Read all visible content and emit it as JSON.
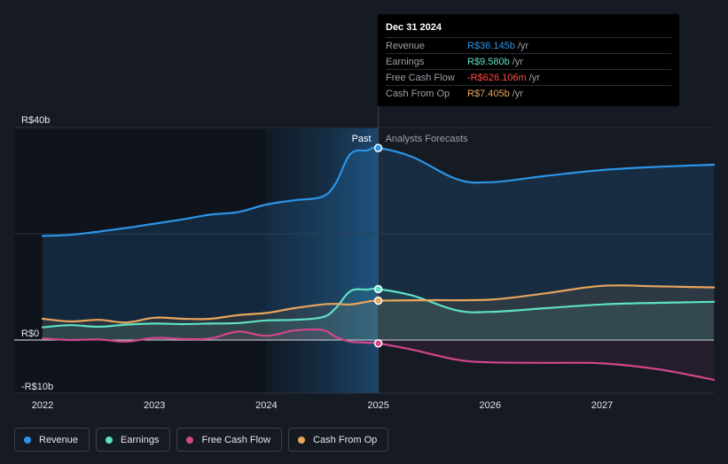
{
  "chart_data": {
    "type": "line",
    "title": "",
    "xlabel": "",
    "ylabel": "",
    "ylim": [
      -10,
      40
    ],
    "y_ticks": [
      {
        "value": 40,
        "label": "R$40b"
      },
      {
        "value": 0,
        "label": "R$0"
      },
      {
        "value": -10,
        "label": "-R$10b"
      }
    ],
    "x_ticks": [
      {
        "value": 2022,
        "label": "2022"
      },
      {
        "value": 2023,
        "label": "2023"
      },
      {
        "value": 2024,
        "label": "2024"
      },
      {
        "value": 2025,
        "label": "2025"
      },
      {
        "value": 2026,
        "label": "2026"
      },
      {
        "value": 2027,
        "label": "2027"
      }
    ],
    "xlim": [
      2021.8,
      2028.0
    ],
    "divider_x": 2025.0,
    "highlight_from_x": 2024.0,
    "past_label": "Past",
    "forecast_label": "Analysts Forecasts",
    "series": [
      {
        "name": "Revenue",
        "color": "#2b94e6",
        "points": [
          [
            2022.0,
            19.6
          ],
          [
            2022.25,
            19.8
          ],
          [
            2022.5,
            20.4
          ],
          [
            2022.75,
            21.1
          ],
          [
            2023.0,
            21.9
          ],
          [
            2023.25,
            22.7
          ],
          [
            2023.5,
            23.6
          ],
          [
            2023.75,
            24.1
          ],
          [
            2024.0,
            25.5
          ],
          [
            2024.25,
            26.3
          ],
          [
            2024.5,
            27.0
          ],
          [
            2024.62,
            29.5
          ],
          [
            2024.75,
            35.0
          ],
          [
            2024.9,
            35.7
          ],
          [
            2025.0,
            36.145
          ]
        ],
        "forecast": [
          [
            2025.0,
            36.145
          ],
          [
            2025.3,
            34.5
          ],
          [
            2025.7,
            30.3
          ],
          [
            2026.0,
            29.7
          ],
          [
            2026.5,
            30.9
          ],
          [
            2027.0,
            32.0
          ],
          [
            2027.5,
            32.6
          ],
          [
            2028.0,
            33.0
          ]
        ]
      },
      {
        "name": "Earnings",
        "color": "#5fe0c6",
        "points": [
          [
            2022.0,
            2.4
          ],
          [
            2022.25,
            2.8
          ],
          [
            2022.5,
            2.5
          ],
          [
            2022.75,
            2.9
          ],
          [
            2023.0,
            3.1
          ],
          [
            2023.25,
            3.0
          ],
          [
            2023.5,
            3.1
          ],
          [
            2023.75,
            3.2
          ],
          [
            2024.0,
            3.7
          ],
          [
            2024.25,
            3.8
          ],
          [
            2024.5,
            4.3
          ],
          [
            2024.62,
            6.0
          ],
          [
            2024.75,
            9.2
          ],
          [
            2024.9,
            9.5
          ],
          [
            2025.0,
            9.58
          ]
        ],
        "forecast": [
          [
            2025.0,
            9.58
          ],
          [
            2025.3,
            8.4
          ],
          [
            2025.7,
            5.6
          ],
          [
            2026.0,
            5.3
          ],
          [
            2026.5,
            6.0
          ],
          [
            2027.0,
            6.7
          ],
          [
            2027.5,
            7.0
          ],
          [
            2028.0,
            7.2
          ]
        ]
      },
      {
        "name": "Free Cash Flow",
        "color": "#d2468c",
        "points": [
          [
            2022.0,
            0.3
          ],
          [
            2022.25,
            0.0
          ],
          [
            2022.5,
            0.1
          ],
          [
            2022.75,
            -0.3
          ],
          [
            2023.0,
            0.4
          ],
          [
            2023.25,
            0.2
          ],
          [
            2023.5,
            0.3
          ],
          [
            2023.75,
            1.6
          ],
          [
            2024.0,
            0.8
          ],
          [
            2024.25,
            1.8
          ],
          [
            2024.5,
            1.9
          ],
          [
            2024.62,
            0.6
          ],
          [
            2024.75,
            -0.3
          ],
          [
            2024.9,
            -0.5
          ],
          [
            2025.0,
            -0.626
          ]
        ],
        "forecast": [
          [
            2025.0,
            -0.626
          ],
          [
            2025.3,
            -1.8
          ],
          [
            2025.7,
            -3.7
          ],
          [
            2026.0,
            -4.2
          ],
          [
            2026.5,
            -4.3
          ],
          [
            2027.0,
            -4.4
          ],
          [
            2027.5,
            -5.5
          ],
          [
            2028.0,
            -7.5
          ]
        ]
      },
      {
        "name": "Cash From Op",
        "color": "#e8a55c",
        "points": [
          [
            2022.0,
            4.0
          ],
          [
            2022.25,
            3.5
          ],
          [
            2022.5,
            3.8
          ],
          [
            2022.75,
            3.3
          ],
          [
            2023.0,
            4.2
          ],
          [
            2023.25,
            4.0
          ],
          [
            2023.5,
            4.0
          ],
          [
            2023.75,
            4.7
          ],
          [
            2024.0,
            5.1
          ],
          [
            2024.25,
            6.0
          ],
          [
            2024.5,
            6.7
          ],
          [
            2024.62,
            6.8
          ],
          [
            2024.75,
            6.7
          ],
          [
            2024.9,
            7.2
          ],
          [
            2025.0,
            7.405
          ]
        ],
        "forecast": [
          [
            2025.0,
            7.405
          ],
          [
            2025.5,
            7.5
          ],
          [
            2026.0,
            7.6
          ],
          [
            2026.5,
            8.8
          ],
          [
            2027.0,
            10.2
          ],
          [
            2027.5,
            10.1
          ],
          [
            2028.0,
            9.9
          ]
        ]
      }
    ],
    "tooltip_x": 2025.0
  },
  "tooltip": {
    "date": "Dec 31 2024",
    "rows": [
      {
        "label": "Revenue",
        "value": "R$36.145b",
        "unit": "/yr",
        "color": "#2b94e6"
      },
      {
        "label": "Earnings",
        "value": "R$9.580b",
        "unit": "/yr",
        "color": "#5fe0c6"
      },
      {
        "label": "Free Cash Flow",
        "value": "-R$626.106m",
        "unit": "/yr",
        "color": "#ff4d4d"
      },
      {
        "label": "Cash From Op",
        "value": "R$7.405b",
        "unit": "/yr",
        "color": "#e8a55c"
      }
    ]
  },
  "legend": [
    {
      "label": "Revenue",
      "color": "#2b94e6"
    },
    {
      "label": "Earnings",
      "color": "#5fe0c6"
    },
    {
      "label": "Free Cash Flow",
      "color": "#d2468c"
    },
    {
      "label": "Cash From Op",
      "color": "#e8a55c"
    }
  ]
}
